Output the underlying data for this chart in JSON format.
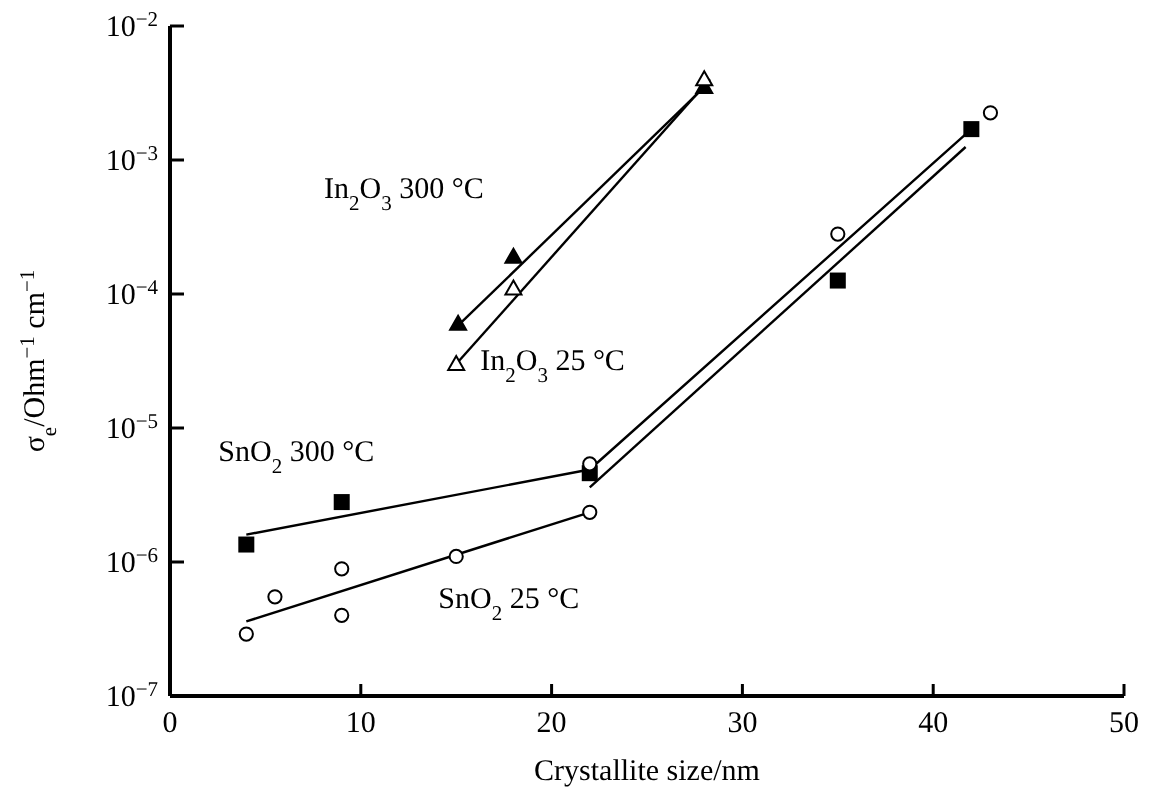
{
  "chart_data": {
    "type": "scatter",
    "xlabel": "Crystallite size/nm",
    "ylabel": "σ$_{e}$/Ohm$^{−1}$ cm$^{−1}$",
    "log": "y",
    "grid": false,
    "legend": false,
    "xlim": [
      0,
      50
    ],
    "xticks": [
      0,
      10,
      20,
      30,
      40,
      50
    ],
    "ylim": [
      1e-07,
      0.01
    ],
    "yticks": [
      {
        "value": 1e-07,
        "label": "10$^{−7}$"
      },
      {
        "value": 1e-06,
        "label": "10$^{−6}$"
      },
      {
        "value": 1e-05,
        "label": "10$^{−5}$"
      },
      {
        "value": 0.0001,
        "label": "10$^{−4}$"
      },
      {
        "value": 0.001,
        "label": "10$^{−3}$"
      },
      {
        "value": 0.01,
        "label": "10$^{−2}$"
      }
    ],
    "series": [
      {
        "name": "In$_{2}$O$_{3}$  300 °C",
        "marker": "triangle",
        "color": "#000000",
        "x": [
          15.1,
          18,
          28
        ],
        "values": [
          6e-05,
          0.00019,
          0.0035
        ]
      },
      {
        "name": "In$_{2}$O$_{3}$  25 °C",
        "marker": "triangle",
        "color": "#ffffff",
        "x": [
          15,
          18,
          28
        ],
        "values": [
          3e-05,
          0.00011,
          0.004
        ]
      },
      {
        "name": "SnO$_{2}$  300 °C",
        "marker": "square",
        "color": "#000000",
        "x": [
          4,
          9,
          22,
          35,
          42
        ],
        "values": [
          1.35e-06,
          2.8e-06,
          4.6e-06,
          0.000126,
          0.0017
        ]
      },
      {
        "name": "SnO$_{2}$  25 °C",
        "marker": "circle",
        "color": "#ffffff",
        "x": [
          4,
          5.5,
          9,
          9,
          15,
          22,
          22,
          35,
          43
        ],
        "values": [
          2.9e-07,
          5.5e-07,
          8.9e-07,
          4e-07,
          1.1e-06,
          2.35e-06,
          5.4e-06,
          0.00028,
          0.00225
        ]
      },
      {
        "type": "line",
        "marker": "none",
        "color": "#000000",
        "x": [
          15.2,
          28
        ],
        "values": [
          6e-05,
          0.0035
        ]
      },
      {
        "type": "line",
        "marker": "none",
        "color": "#000000",
        "x": [
          15,
          28.3
        ],
        "values": [
          3e-05,
          0.004
        ]
      },
      {
        "type": "line",
        "marker": "none",
        "color": "#000000",
        "x": [
          4,
          22,
          42
        ],
        "values": [
          1.6e-06,
          4.9e-06,
          0.0017
        ]
      },
      {
        "type": "line",
        "marker": "none",
        "color": "#000000",
        "x": [
          4,
          22
        ],
        "values": [
          3.6e-07,
          2.35e-06
        ]
      },
      {
        "type": "line",
        "marker": "none",
        "color": "#000000",
        "x": [
          22,
          41.7
        ],
        "values": [
          3.6e-06,
          0.00125
        ]
      }
    ]
  }
}
